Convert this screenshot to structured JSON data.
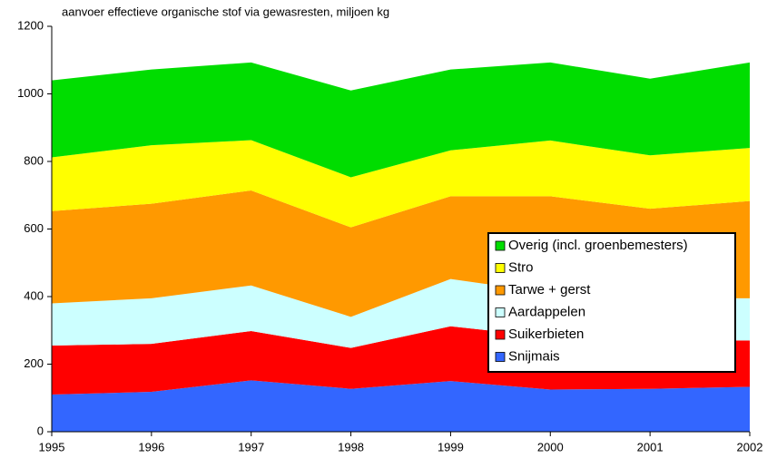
{
  "chart_data": {
    "type": "stacked_area",
    "title": "aanvoer effectieve organische stof via gewasresten, miljoen kg",
    "categories": [
      "1995",
      "1996",
      "1997",
      "1998",
      "1999",
      "2000",
      "2001",
      "2002"
    ],
    "series": [
      {
        "name": "Snijmais",
        "color": "#3366ff",
        "values": [
          110,
          118,
          152,
          127,
          150,
          125,
          127,
          133
        ]
      },
      {
        "name": "Suikerbieten",
        "color": "#ff0000",
        "values": [
          145,
          142,
          146,
          121,
          162,
          155,
          143,
          137
        ]
      },
      {
        "name": "Aardappelen",
        "color": "#ccffff",
        "values": [
          125,
          135,
          135,
          92,
          140,
          130,
          125,
          125
        ]
      },
      {
        "name": "Tarwe + gerst",
        "color": "#ff9900",
        "values": [
          273,
          280,
          281,
          265,
          245,
          287,
          265,
          288
        ]
      },
      {
        "name": "Stro",
        "color": "#ffff00",
        "values": [
          159,
          173,
          149,
          148,
          136,
          165,
          158,
          157
        ]
      },
      {
        "name": "Overig (incl. groenbemesters)",
        "color": "#00dd00",
        "values": [
          228,
          224,
          230,
          257,
          239,
          231,
          227,
          253
        ]
      }
    ],
    "ylim": [
      0,
      1200
    ],
    "yticks": [
      0,
      200,
      400,
      600,
      800,
      1000,
      1200
    ],
    "legend": "center-right"
  }
}
